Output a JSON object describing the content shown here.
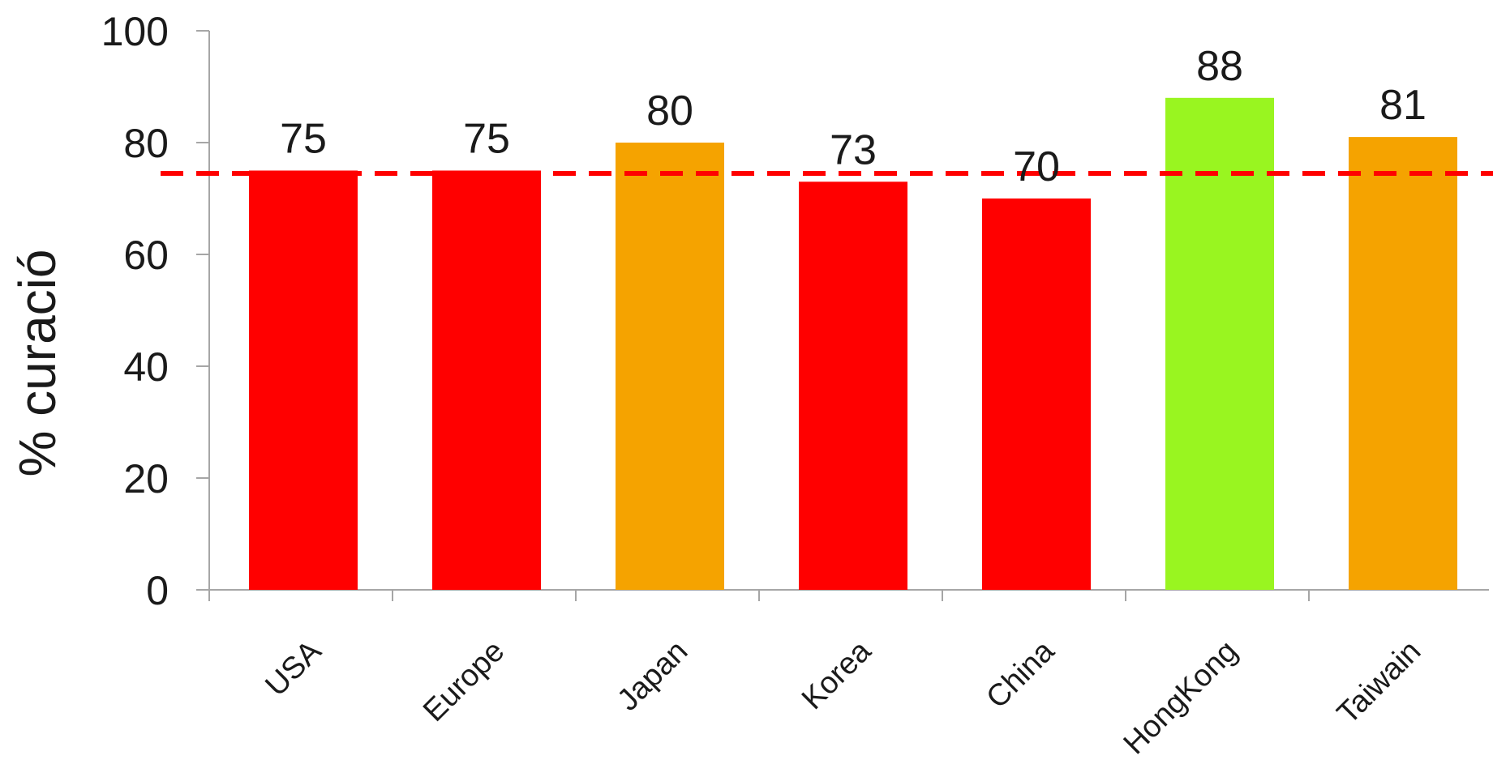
{
  "chart_data": {
    "type": "bar",
    "title": "",
    "xlabel": "",
    "ylabel": "% curació",
    "categories": [
      "USA",
      "Europe",
      "Japan",
      "Korea",
      "China",
      "HongKong",
      "Taiwain"
    ],
    "values": [
      75,
      75,
      80,
      73,
      70,
      88,
      81
    ],
    "data_labels": [
      "75",
      "75",
      "80",
      "73",
      "70",
      "88",
      "81"
    ],
    "bar_colors": [
      "#ff0000",
      "#ff0000",
      "#f5a300",
      "#ff0000",
      "#ff0000",
      "#99f520",
      "#f5a300"
    ],
    "ylim": [
      0,
      100
    ],
    "y_ticks": [
      0,
      20,
      40,
      60,
      80,
      100
    ],
    "y_tick_labels": [
      "0",
      "20",
      "40",
      "60",
      "80",
      "100"
    ],
    "reference_line": {
      "value": 74.5,
      "color": "#ff0000",
      "style": "dashed"
    },
    "grid": false,
    "legend": "none"
  }
}
